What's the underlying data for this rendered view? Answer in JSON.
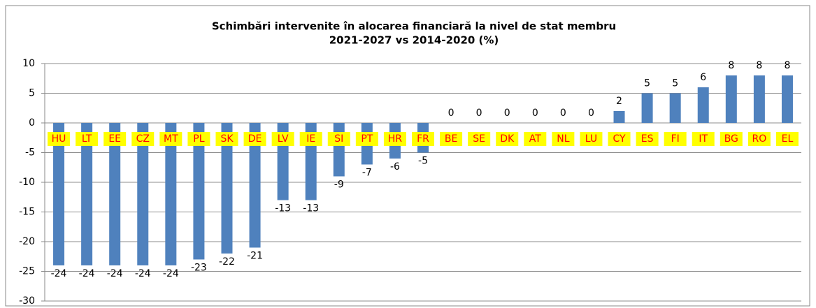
{
  "chart_data": {
    "type": "bar",
    "title": [
      "Schimbări intervenite în alocarea financiară la nivel de stat membru",
      "2021-2027  vs 2014-2020  (%)"
    ],
    "categories": [
      "HU",
      "LT",
      "EE",
      "CZ",
      "MT",
      "PL",
      "SK",
      "DE",
      "LV",
      "IE",
      "SI",
      "PT",
      "HR",
      "FR",
      "BE",
      "SE",
      "DK",
      "AT",
      "NL",
      "LU",
      "CY",
      "ES",
      "FI",
      "IT",
      "BG",
      "RO",
      "EL"
    ],
    "values": [
      -24,
      -24,
      -24,
      -24,
      -24,
      -23,
      -22,
      -21,
      -13,
      -13,
      -9,
      -7,
      -6,
      -5,
      0,
      0,
      0,
      0,
      0,
      0,
      2,
      5,
      5,
      6,
      8,
      8,
      8
    ],
    "color": "#4f81bd",
    "ylim": [
      -30,
      10
    ],
    "yticks": [
      -30,
      -25,
      -20,
      -15,
      -10,
      -5,
      0,
      5,
      10
    ],
    "grid": true
  }
}
